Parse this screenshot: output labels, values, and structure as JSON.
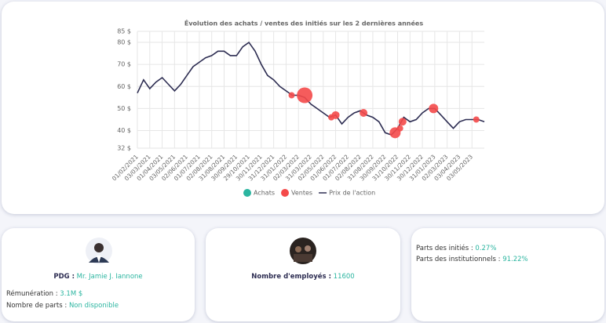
{
  "chart_data": {
    "type": "line",
    "title": "Évolution des achats / ventes des initiés sur les 2 dernières années",
    "categories": [
      "01/02/2021",
      null,
      "03/03/2021",
      null,
      "01/04/2021",
      null,
      "03/05/2021",
      null,
      "02/06/2021",
      null,
      "01/07/2021",
      null,
      "02/08/2021",
      null,
      "31/08/2021",
      null,
      "30/09/2021",
      null,
      "29/10/2021",
      null,
      "30/11/2021",
      null,
      "31/12/2021",
      null,
      "31/01/2022",
      null,
      "02/03/2022",
      null,
      "31/03/2022",
      null,
      "02/05/2022",
      null,
      "01/06/2022",
      null,
      "01/07/2022",
      null,
      "02/08/2022",
      null,
      "31/08/2022",
      null,
      "30/09/2022",
      null,
      "31/10/2022",
      null,
      "30/11/2022",
      null,
      "30/12/2022",
      null,
      "31/01/2023",
      null,
      "02/03/2023",
      null,
      "03/04/2023",
      null,
      "03/05/2023",
      null,
      null
    ],
    "ylim": [
      32,
      85
    ],
    "yticks": [
      {
        "value": 32,
        "label": "32 $"
      },
      {
        "value": 40,
        "label": "40 $"
      },
      {
        "value": 50,
        "label": "50 $"
      },
      {
        "value": 60,
        "label": "60 $"
      },
      {
        "value": 70,
        "label": "70 $"
      },
      {
        "value": 80,
        "label": "80 $"
      },
      {
        "value": 85,
        "label": "85 $"
      }
    ],
    "grid": true,
    "series": [
      {
        "name": "Achats",
        "type": "scatter",
        "color": "#2bb5a0",
        "x": [],
        "values": [],
        "sizes": []
      },
      {
        "name": "Ventes",
        "type": "scatter",
        "color": "#f44a4a",
        "x": [
          24.9,
          27.0,
          31.3,
          32.0,
          36.5,
          41.6,
          42.4,
          42.8,
          47.8,
          54.7
        ],
        "values": [
          56,
          56,
          46,
          47,
          48,
          39,
          41,
          44,
          50,
          45
        ],
        "sizes": [
          4,
          10,
          4,
          5,
          5,
          7,
          4,
          5,
          6,
          4
        ]
      },
      {
        "name": "Prix de l'action",
        "type": "line",
        "color": "#2d2d52",
        "values": [
          57,
          63,
          59,
          62,
          64,
          61,
          58,
          61,
          65,
          69,
          71,
          73,
          74,
          76,
          76,
          74,
          74,
          78,
          80,
          76,
          70,
          65,
          63,
          60,
          58,
          56,
          56,
          55,
          52,
          50,
          48,
          46,
          47,
          43,
          46,
          48,
          49,
          47,
          46,
          44,
          39,
          38,
          41,
          46,
          44,
          45,
          48,
          50,
          50,
          47,
          44,
          41,
          44,
          45,
          45,
          45,
          44
        ]
      }
    ]
  },
  "cards": {
    "ceo": {
      "label": "PDG :",
      "name": "Mr. Jamie J. Iannone",
      "pay_label": "Rémunération :",
      "pay": "3.1M $",
      "shares_label": "Nombre de parts :",
      "shares": "Non disponible"
    },
    "employees": {
      "label": "Nombre d'employés :",
      "value": "11600"
    },
    "ownership": {
      "insiders_label": "Parts des initiés :",
      "insiders": "0.27%",
      "institutions_label": "Parts des institutionnels :",
      "institutions": "91.22%"
    }
  }
}
